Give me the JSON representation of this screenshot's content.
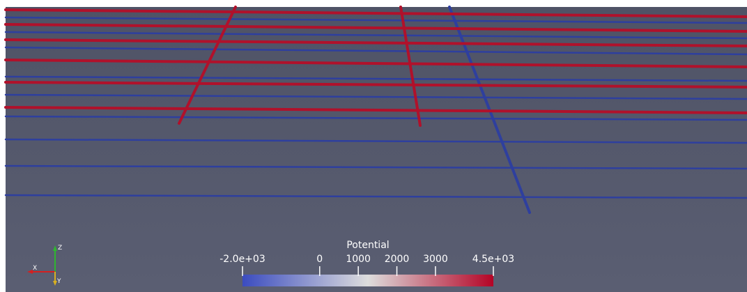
{
  "colorbar": {
    "title": "Potential",
    "range": [
      -2000,
      4500
    ],
    "ticks": [
      {
        "value": -2000,
        "label": "-2.0e+03"
      },
      0,
      1000,
      2000,
      3000,
      {
        "value": 4500,
        "label": "4.5e+03"
      }
    ]
  },
  "orientation_axes": {
    "z": "Z",
    "x": "X",
    "y": "Y"
  }
}
